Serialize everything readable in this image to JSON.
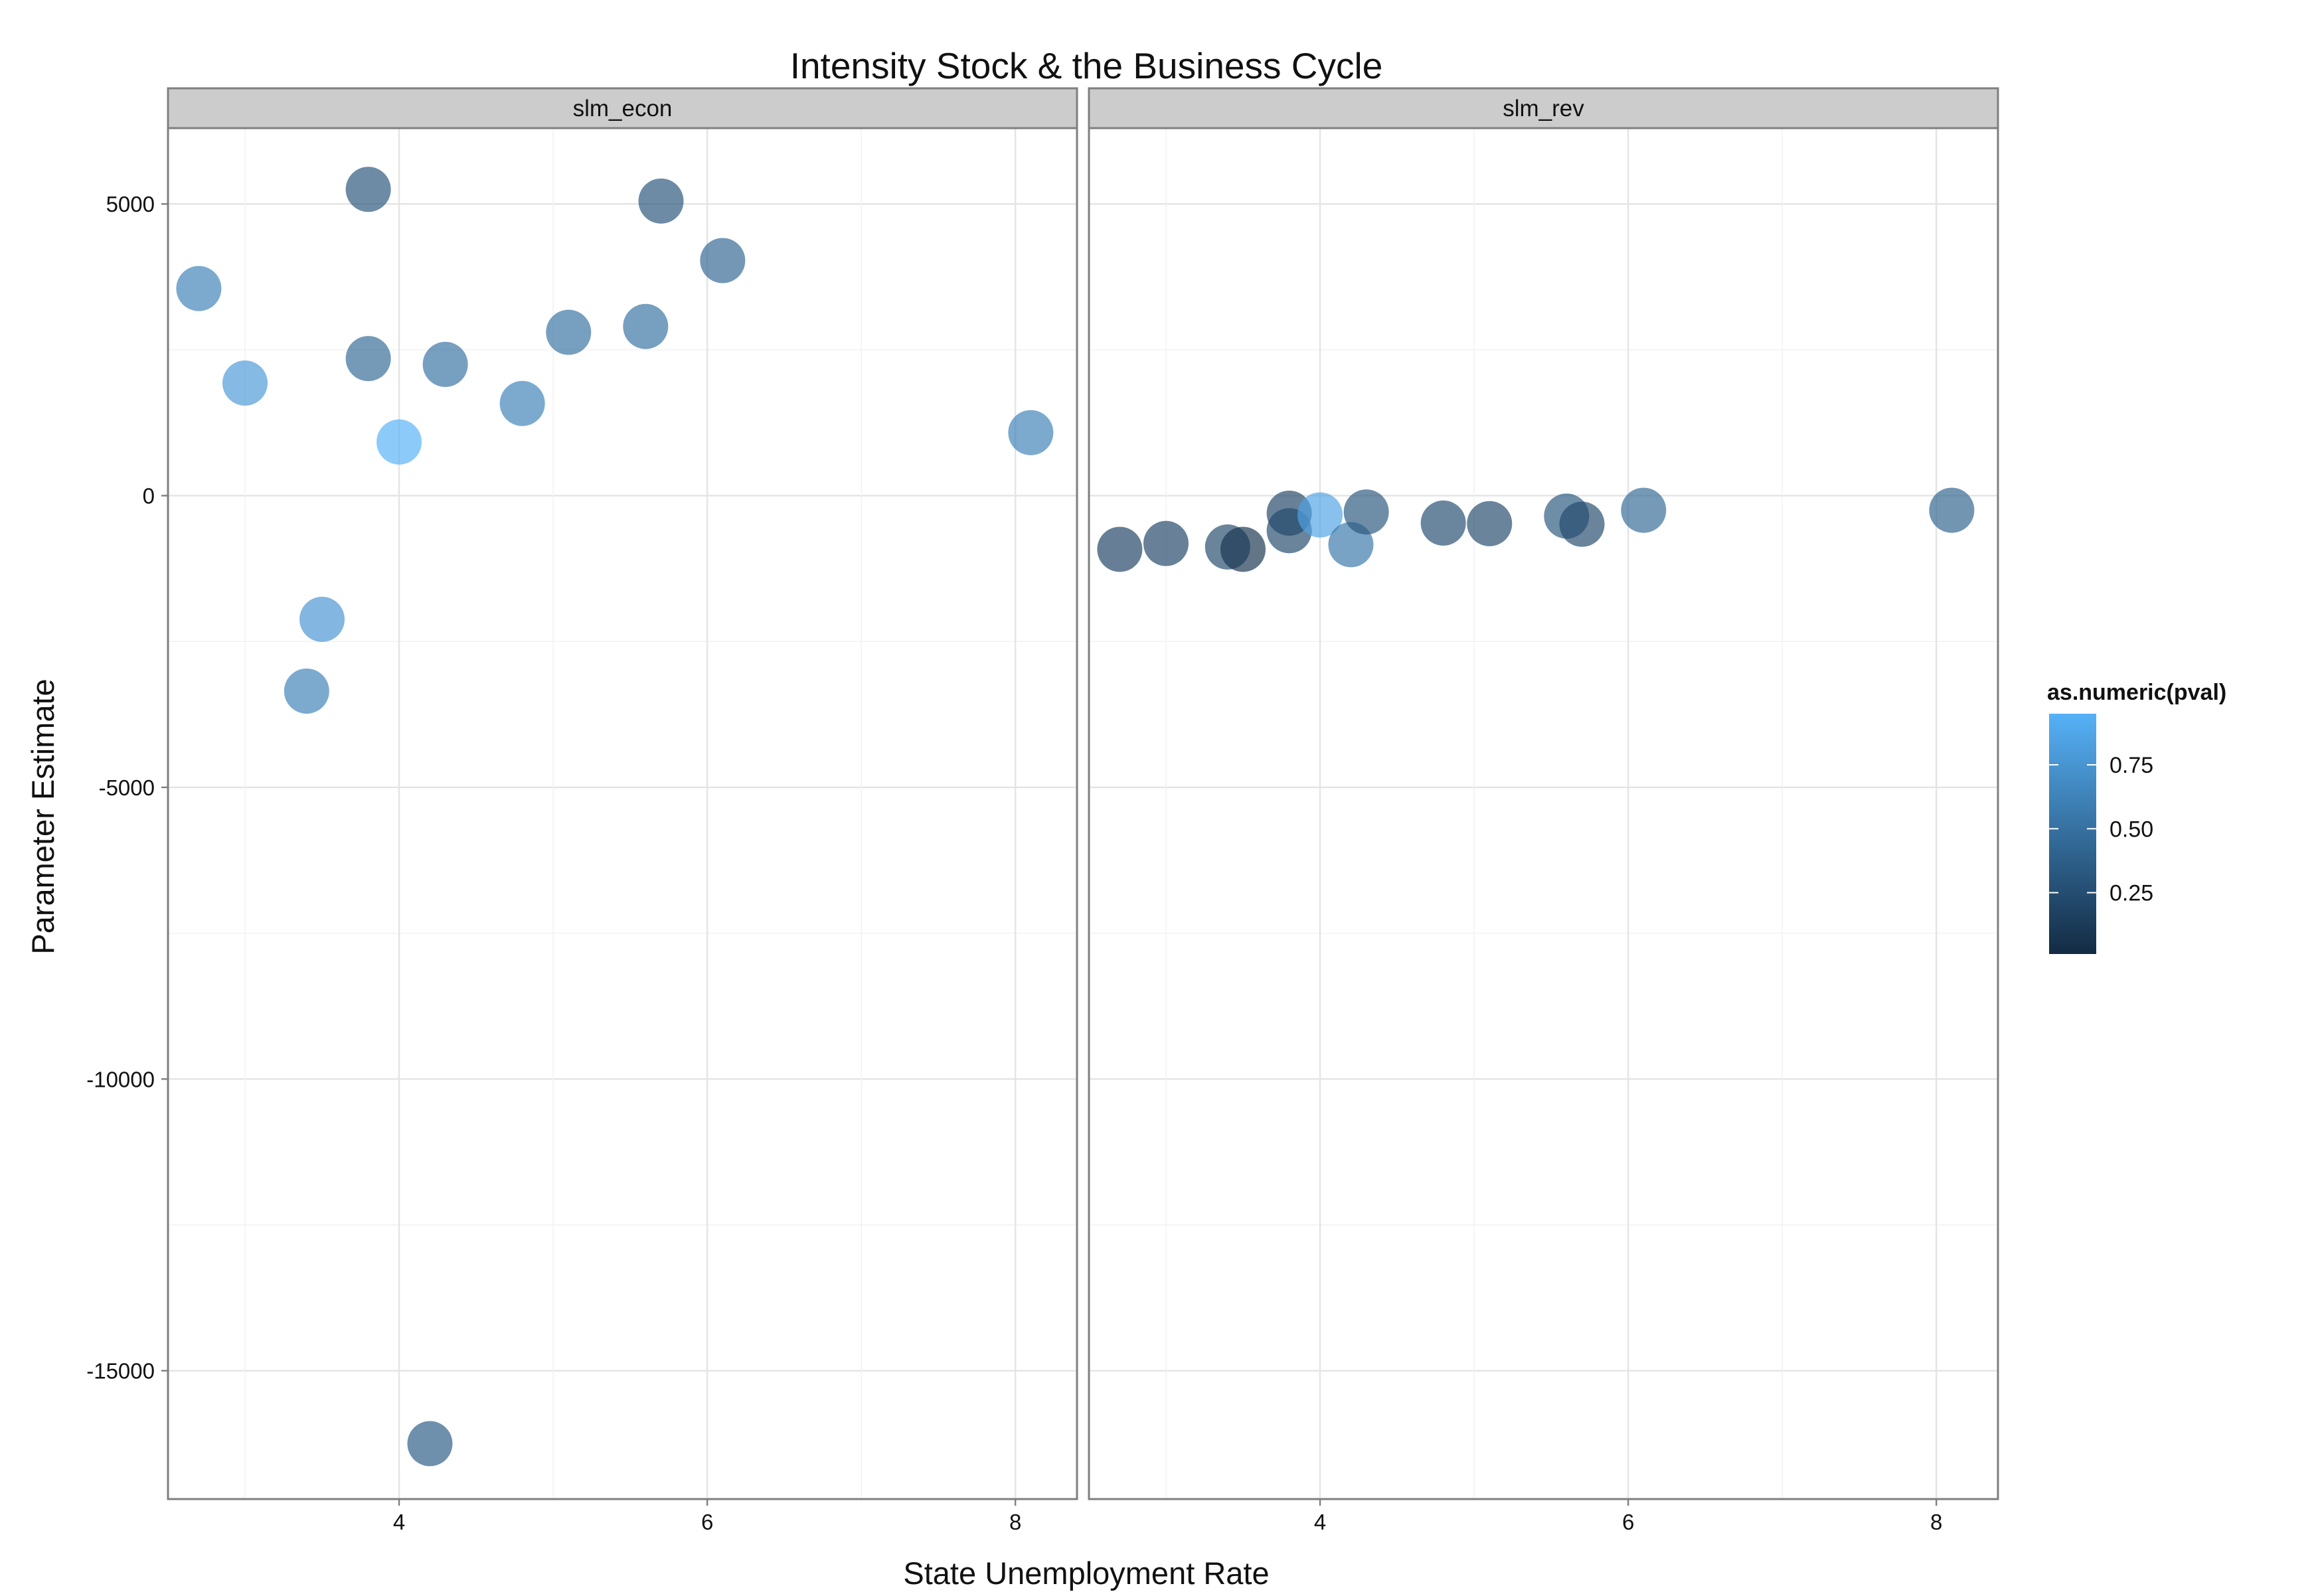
{
  "chart_data": {
    "type": "scatter",
    "title": "Intensity Stock & the Business Cycle",
    "xlabel": "State Unemployment Rate",
    "ylabel": "Parameter Estimate",
    "xlim": [
      2.5,
      8.4
    ],
    "ylim": [
      -17200,
      6300
    ],
    "x_ticks": [
      4,
      6,
      8
    ],
    "y_ticks": [
      5000,
      0,
      -5000,
      -10000,
      -15000
    ],
    "y_tick_labels": [
      "5000",
      "0",
      "-5000",
      "-10000",
      "-15000"
    ],
    "grid": true,
    "color_scale": {
      "title": "as.numeric(pval)",
      "low_color": "#132B43",
      "high_color": "#56B1F7",
      "domain": [
        0.01,
        0.95
      ],
      "ticks": [
        0.25,
        0.5,
        0.75
      ],
      "tick_labels": [
        "0.25",
        "0.50",
        "0.75"
      ]
    },
    "legend_position": "right",
    "panels": [
      {
        "name": "slm_econ",
        "points": [
          {
            "x": 2.7,
            "y": 3550,
            "pval": 0.62
          },
          {
            "x": 3.0,
            "y": 1930,
            "pval": 0.78
          },
          {
            "x": 3.4,
            "y": -3350,
            "pval": 0.62
          },
          {
            "x": 3.5,
            "y": -2120,
            "pval": 0.75
          },
          {
            "x": 3.8,
            "y": 5250,
            "pval": 0.3
          },
          {
            "x": 3.8,
            "y": 2350,
            "pval": 0.45
          },
          {
            "x": 4.0,
            "y": 920,
            "pval": 0.95
          },
          {
            "x": 4.2,
            "y": -16250,
            "pval": 0.35
          },
          {
            "x": 4.3,
            "y": 2250,
            "pval": 0.5
          },
          {
            "x": 4.8,
            "y": 1580,
            "pval": 0.62
          },
          {
            "x": 5.1,
            "y": 2800,
            "pval": 0.5
          },
          {
            "x": 5.6,
            "y": 2900,
            "pval": 0.5
          },
          {
            "x": 5.7,
            "y": 5050,
            "pval": 0.3
          },
          {
            "x": 6.1,
            "y": 4030,
            "pval": 0.42
          },
          {
            "x": 8.1,
            "y": 1080,
            "pval": 0.62
          }
        ]
      },
      {
        "name": "slm_rev",
        "points": [
          {
            "x": 2.7,
            "y": -920,
            "pval": 0.18
          },
          {
            "x": 3.0,
            "y": -820,
            "pval": 0.2
          },
          {
            "x": 3.4,
            "y": -880,
            "pval": 0.22
          },
          {
            "x": 3.5,
            "y": -920,
            "pval": 0.08
          },
          {
            "x": 3.8,
            "y": -300,
            "pval": 0.2
          },
          {
            "x": 3.8,
            "y": -600,
            "pval": 0.22
          },
          {
            "x": 4.0,
            "y": -330,
            "pval": 0.85
          },
          {
            "x": 4.2,
            "y": -840,
            "pval": 0.55
          },
          {
            "x": 4.3,
            "y": -280,
            "pval": 0.32
          },
          {
            "x": 4.8,
            "y": -470,
            "pval": 0.25
          },
          {
            "x": 5.1,
            "y": -480,
            "pval": 0.22
          },
          {
            "x": 5.6,
            "y": -350,
            "pval": 0.32
          },
          {
            "x": 5.7,
            "y": -490,
            "pval": 0.22
          },
          {
            "x": 6.1,
            "y": -250,
            "pval": 0.45
          },
          {
            "x": 8.1,
            "y": -250,
            "pval": 0.4
          }
        ]
      }
    ]
  }
}
